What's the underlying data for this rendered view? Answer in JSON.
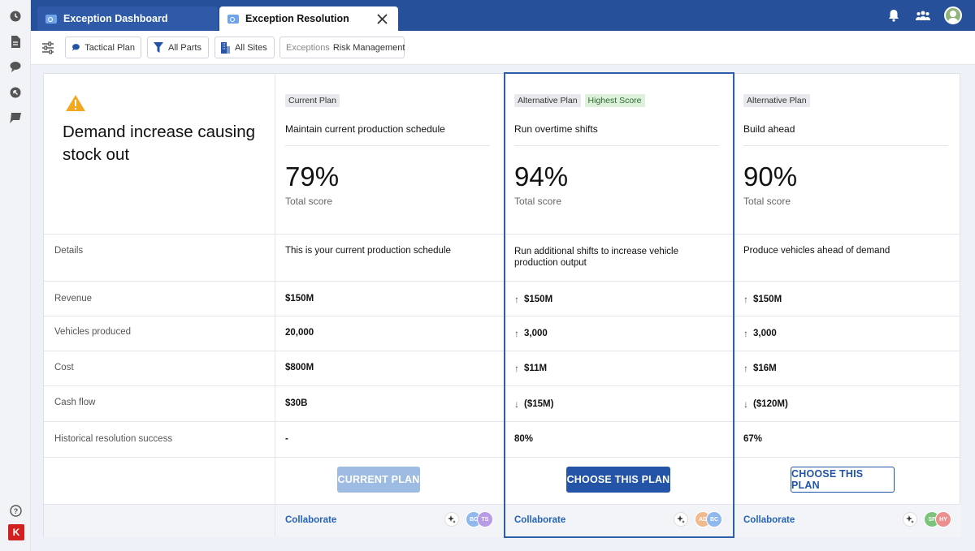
{
  "tabs": [
    {
      "label": "Exception Dashboard",
      "active": false
    },
    {
      "label": "Exception Resolution",
      "active": true
    }
  ],
  "filters": {
    "tactical_plan": "Tactical Plan",
    "all_parts": "All Parts",
    "all_sites": "All Sites",
    "exceptions_prefix": "Exceptions",
    "exceptions_value": "Risk Management"
  },
  "exception": {
    "title": "Demand increase causing stock out",
    "icon": "warning-icon"
  },
  "row_labels": {
    "details": "Details",
    "revenue": "Revenue",
    "vehicles": "Vehicles produced",
    "cost": "Cost",
    "cash_flow": "Cash flow",
    "historical": "Historical resolution success"
  },
  "plans": [
    {
      "badges": [
        "Current Plan"
      ],
      "name": "Maintain current production schedule",
      "score": "79%",
      "score_label": "Total score",
      "details": "This is your current production schedule",
      "revenue": "$150M",
      "vehicles": "20,000",
      "cost": "$800M",
      "cash_flow": "$30B",
      "historical": "-",
      "button": "CURRENT PLAN",
      "collaborate": "Collaborate",
      "avatars": [
        {
          "initials": "BC",
          "color": "#8fb8ee"
        },
        {
          "initials": "TS",
          "color": "#b79be6"
        }
      ]
    },
    {
      "badges": [
        "Alternative Plan",
        "Highest Score"
      ],
      "name": "Run overtime shifts",
      "score": "94%",
      "score_label": "Total score",
      "details": "Run additional shifts to increase vehicle production output",
      "revenue": "$150M",
      "vehicles": "3,000",
      "cost": "$11M",
      "cash_flow": "($15M)",
      "historical": "80%",
      "button": "CHOOSE THIS PLAN",
      "collaborate": "Collaborate",
      "avatars": [
        {
          "initials": "AD",
          "color": "#f1b98e"
        },
        {
          "initials": "BC",
          "color": "#8fb8ee"
        }
      ]
    },
    {
      "badges": [
        "Alternative Plan"
      ],
      "name": "Build ahead",
      "score": "90%",
      "score_label": "Total score",
      "details": "Produce vehicles ahead of demand",
      "revenue": "$150M",
      "vehicles": "3,000",
      "cost": "$16M",
      "cash_flow": "($120M)",
      "historical": "67%",
      "button": "CHOOSE THIS PLAN",
      "collaborate": "Collaborate",
      "avatars": [
        {
          "initials": "SF",
          "color": "#7cc47c"
        },
        {
          "initials": "HY",
          "color": "#ec8f8f"
        }
      ]
    }
  ],
  "colors": {
    "topbar": "#27509b",
    "primary": "#2354a8",
    "warning": "#f2a91f",
    "logo": "#d21f1f"
  },
  "logo": "K"
}
